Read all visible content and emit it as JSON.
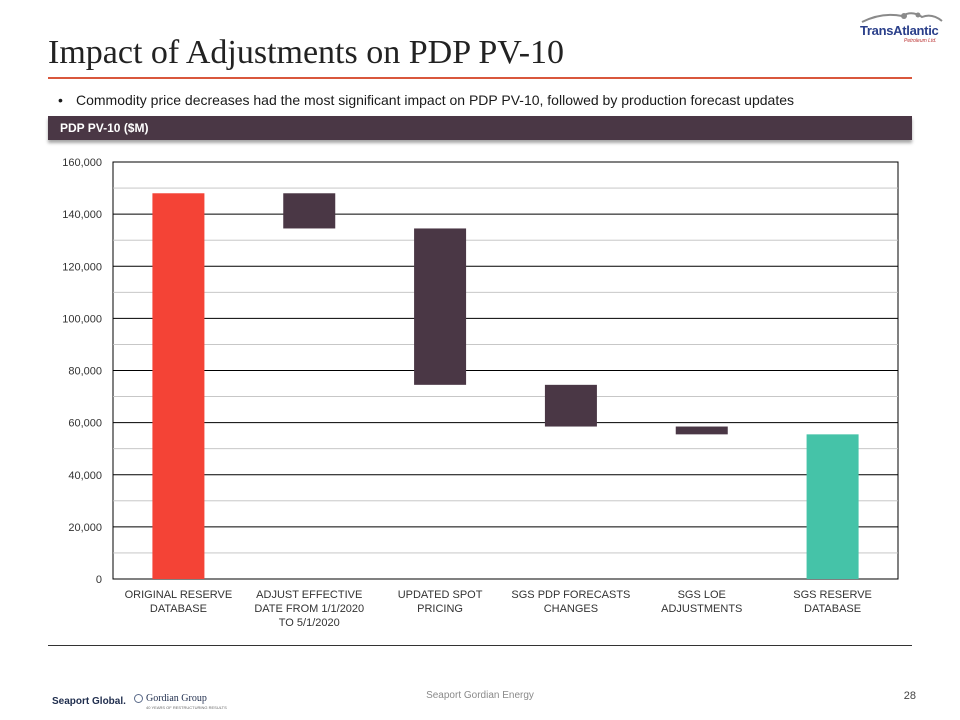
{
  "slide": {
    "title": "Impact of Adjustments on PDP PV-10",
    "bullet": "Commodity price decreases had the most significant impact on PDP PV-10, followed by production forecast updates",
    "banner": "PDP PV-10 ($M)",
    "logo": {
      "name": "TransAtlantic",
      "tagline": "Petroleum Ltd."
    },
    "footer": {
      "center": "Seaport Gordian Energy",
      "page_number": "28",
      "left_logo": "Seaport Global.",
      "right_logo": "Gordian Group",
      "right_logo_sub": "40 YEARS OF RESTRUCTURING RESULTS"
    }
  },
  "colors": {
    "accent_rule": "#d9573c",
    "banner": "#4a3745",
    "original_bar": "#f44336",
    "adjustment_bar": "#4a3745",
    "final_bar": "#45c3a8"
  },
  "chart_data": {
    "type": "bar",
    "subtype": "waterfall",
    "title": "PDP PV-10 ($M)",
    "xlabel": "",
    "ylabel": "",
    "ylim": [
      0,
      160000
    ],
    "yticks": [
      0,
      20000,
      40000,
      60000,
      80000,
      100000,
      120000,
      140000,
      160000
    ],
    "ytick_labels": [
      "0",
      "20,000",
      "40,000",
      "60,000",
      "80,000",
      "100,000",
      "120,000",
      "140,000",
      "160,000"
    ],
    "grid": true,
    "categories": [
      "ORIGINAL RESERVE DATABASE",
      "ADJUST EFFECTIVE DATE FROM 1/1/2020 TO 5/1/2020",
      "UPDATED SPOT PRICING",
      "SGS PDP FORECASTS CHANGES",
      "SGS LOE ADJUSTMENTS",
      "SGS RESERVE DATABASE"
    ],
    "category_lines": [
      [
        "ORIGINAL RESERVE",
        "DATABASE"
      ],
      [
        "ADJUST EFFECTIVE",
        "DATE FROM 1/1/2020",
        "TO 5/1/2020"
      ],
      [
        "UPDATED SPOT",
        "PRICING"
      ],
      [
        "SGS PDP FORECASTS",
        "CHANGES"
      ],
      [
        "SGS LOE",
        "ADJUSTMENTS"
      ],
      [
        "SGS RESERVE",
        "DATABASE"
      ]
    ],
    "bars": [
      {
        "kind": "total",
        "start": 0,
        "end": 148000
      },
      {
        "kind": "decrease",
        "start": 148000,
        "end": 134500
      },
      {
        "kind": "decrease",
        "start": 134500,
        "end": 74500
      },
      {
        "kind": "decrease",
        "start": 74500,
        "end": 58500
      },
      {
        "kind": "decrease",
        "start": 58500,
        "end": 55500
      },
      {
        "kind": "total",
        "start": 0,
        "end": 55500
      }
    ]
  }
}
